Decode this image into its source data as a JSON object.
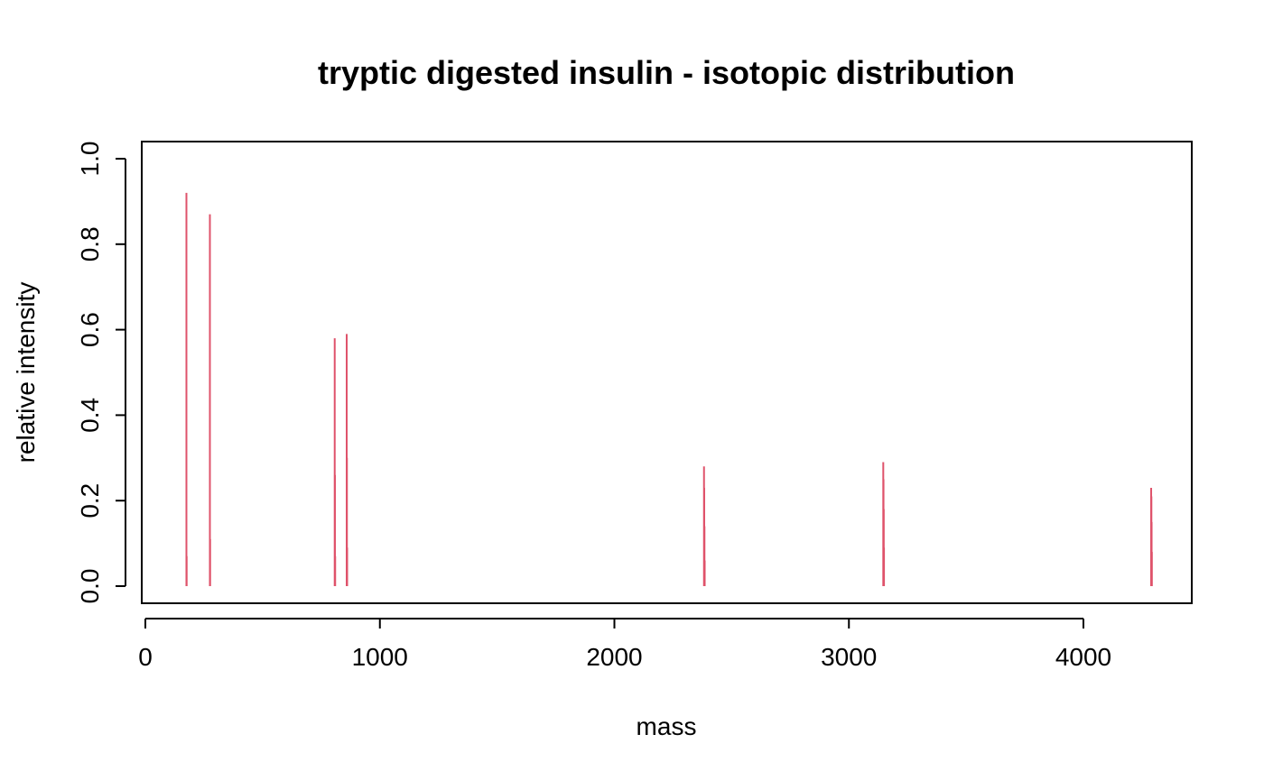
{
  "chart_data": {
    "type": "line",
    "title": "tryptic digested insulin - isotopic distribution",
    "xlabel": "mass",
    "ylabel": "relative intensity",
    "xlim": [
      0,
      4450
    ],
    "ylim": [
      0,
      1.0
    ],
    "x_ticks": [
      0,
      1000,
      2000,
      3000,
      4000
    ],
    "x_tick_labels": [
      "0",
      "1000",
      "2000",
      "3000",
      "4000"
    ],
    "y_ticks": [
      0,
      0.2,
      0.4,
      0.6,
      0.8,
      1.0
    ],
    "y_tick_labels": [
      "0.0",
      "0.2",
      "0.4",
      "0.6",
      "0.8",
      "1.0"
    ],
    "grid": false,
    "series_color": "#DF536B",
    "peaks": [
      {
        "x": 175.1,
        "y": 0.92
      },
      {
        "x": 176.1,
        "y": 0.07
      },
      {
        "x": 275.2,
        "y": 0.87
      },
      {
        "x": 276.2,
        "y": 0.11
      },
      {
        "x": 807.4,
        "y": 0.58
      },
      {
        "x": 808.4,
        "y": 0.26
      },
      {
        "x": 809.4,
        "y": 0.07
      },
      {
        "x": 858.5,
        "y": 0.59
      },
      {
        "x": 859.5,
        "y": 0.3
      },
      {
        "x": 860.5,
        "y": 0.09
      },
      {
        "x": 2382.1,
        "y": 0.28
      },
      {
        "x": 2383.1,
        "y": 0.23
      },
      {
        "x": 2384.1,
        "y": 0.14
      },
      {
        "x": 2385.1,
        "y": 0.06
      },
      {
        "x": 3146.5,
        "y": 0.29
      },
      {
        "x": 3147.5,
        "y": 0.25
      },
      {
        "x": 3148.5,
        "y": 0.18
      },
      {
        "x": 3149.5,
        "y": 0.09
      },
      {
        "x": 4288.8,
        "y": 0.23
      },
      {
        "x": 4289.8,
        "y": 0.21
      },
      {
        "x": 4290.8,
        "y": 0.15
      },
      {
        "x": 4291.8,
        "y": 0.08
      }
    ]
  }
}
